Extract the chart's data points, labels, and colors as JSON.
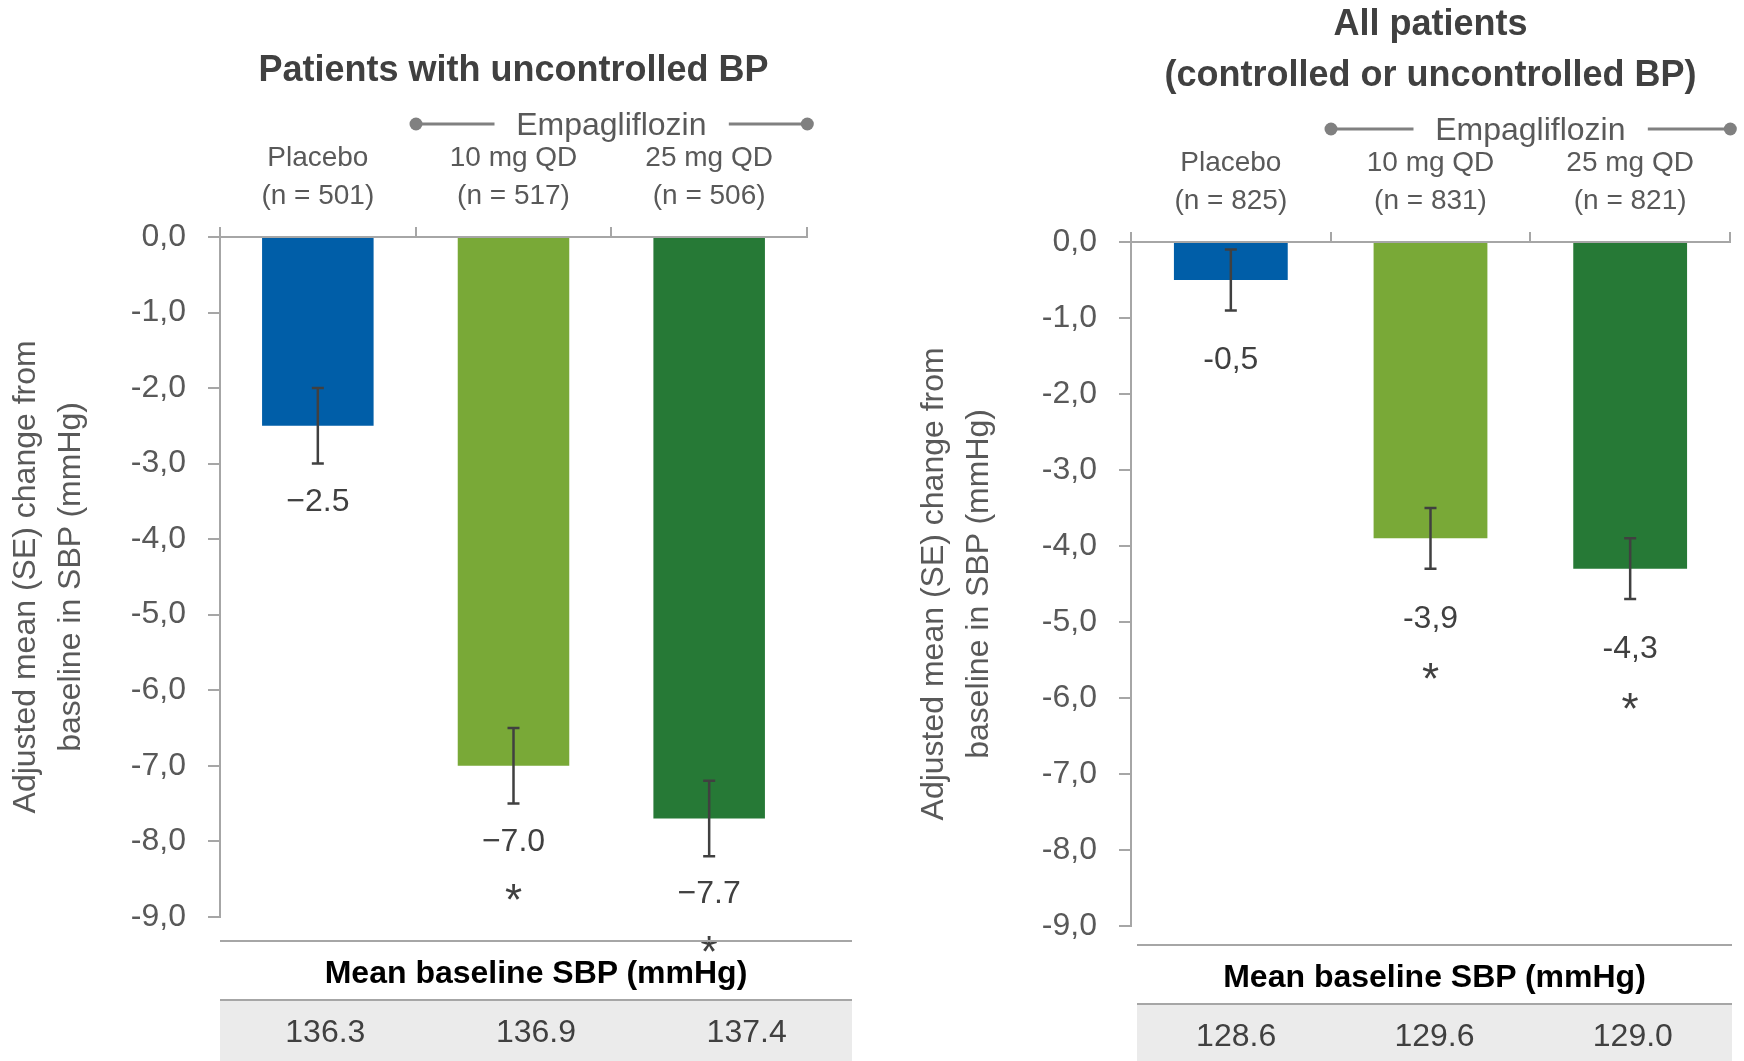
{
  "chart_data": [
    {
      "type": "bar",
      "title": "Patients with uncontrolled BP",
      "ylabel": "Adjusted mean (SE) change from\nbaseline in SBP (mmHg)",
      "categories": [
        "Placebo\n(n = 501)",
        "10 mg QD\n(n = 517)",
        "25 mg QD\n(n = 506)"
      ],
      "values": [
        -2.5,
        -7.0,
        -7.7
      ],
      "colors": [
        "#005ea8",
        "#79a937",
        "#267936"
      ],
      "errors": [
        0.5,
        0.5,
        0.5
      ],
      "value_labels": [
        "−2.5",
        "−7.0\n*",
        "−7.7\n*"
      ],
      "ylim": [
        -9,
        0
      ],
      "yticks": [
        {
          "value": 0,
          "label": "0,0"
        },
        {
          "value": -1,
          "label": "-1,0"
        },
        {
          "value": -2,
          "label": "-2,0"
        },
        {
          "value": -3,
          "label": "-3,0"
        },
        {
          "value": -4,
          "label": "-4,0"
        },
        {
          "value": -5,
          "label": "-5,0"
        },
        {
          "value": -6,
          "label": "-6,0"
        },
        {
          "value": -7,
          "label": "-7,0"
        },
        {
          "value": -8,
          "label": "-8,0"
        },
        {
          "value": -9,
          "label": "-9,0"
        }
      ],
      "annotations": [
        "Empagliflozin",
        "Mean baseline SBP (mmHg)",
        "136.3",
        "136.9",
        "137.4"
      ]
    },
    {
      "type": "bar",
      "title": "All patients\n(controlled or uncontrolled BP)",
      "ylabel": "Adjusted mean (SE) change from\nbaseline in SBP (mmHg)",
      "categories": [
        "Placebo\n(n = 825)",
        "10 mg QD\n(n = 831)",
        "25 mg QD\n(n = 821)"
      ],
      "values": [
        -0.5,
        -3.9,
        -4.3
      ],
      "colors": [
        "#005ea8",
        "#79a937",
        "#267936"
      ],
      "errors": [
        0.4,
        0.4,
        0.4
      ],
      "value_labels": [
        "-0,5",
        "-3,9\n*",
        "-4,3\n*"
      ],
      "ylim": [
        -9,
        0
      ],
      "yticks": [
        {
          "value": 0,
          "label": "0,0"
        },
        {
          "value": -1,
          "label": "-1,0"
        },
        {
          "value": -2,
          "label": "-2,0"
        },
        {
          "value": -3,
          "label": "-3,0"
        },
        {
          "value": -4,
          "label": "-4,0"
        },
        {
          "value": -5,
          "label": "-5,0"
        },
        {
          "value": -6,
          "label": "-6,0"
        },
        {
          "value": -7,
          "label": "-7,0"
        },
        {
          "value": -8,
          "label": "-8,0"
        },
        {
          "value": -9,
          "label": "-9,0"
        }
      ],
      "annotations": [
        "Empagliflozin",
        "Mean baseline SBP (mmHg)",
        "128.6",
        "129.6",
        "129.0"
      ]
    }
  ]
}
